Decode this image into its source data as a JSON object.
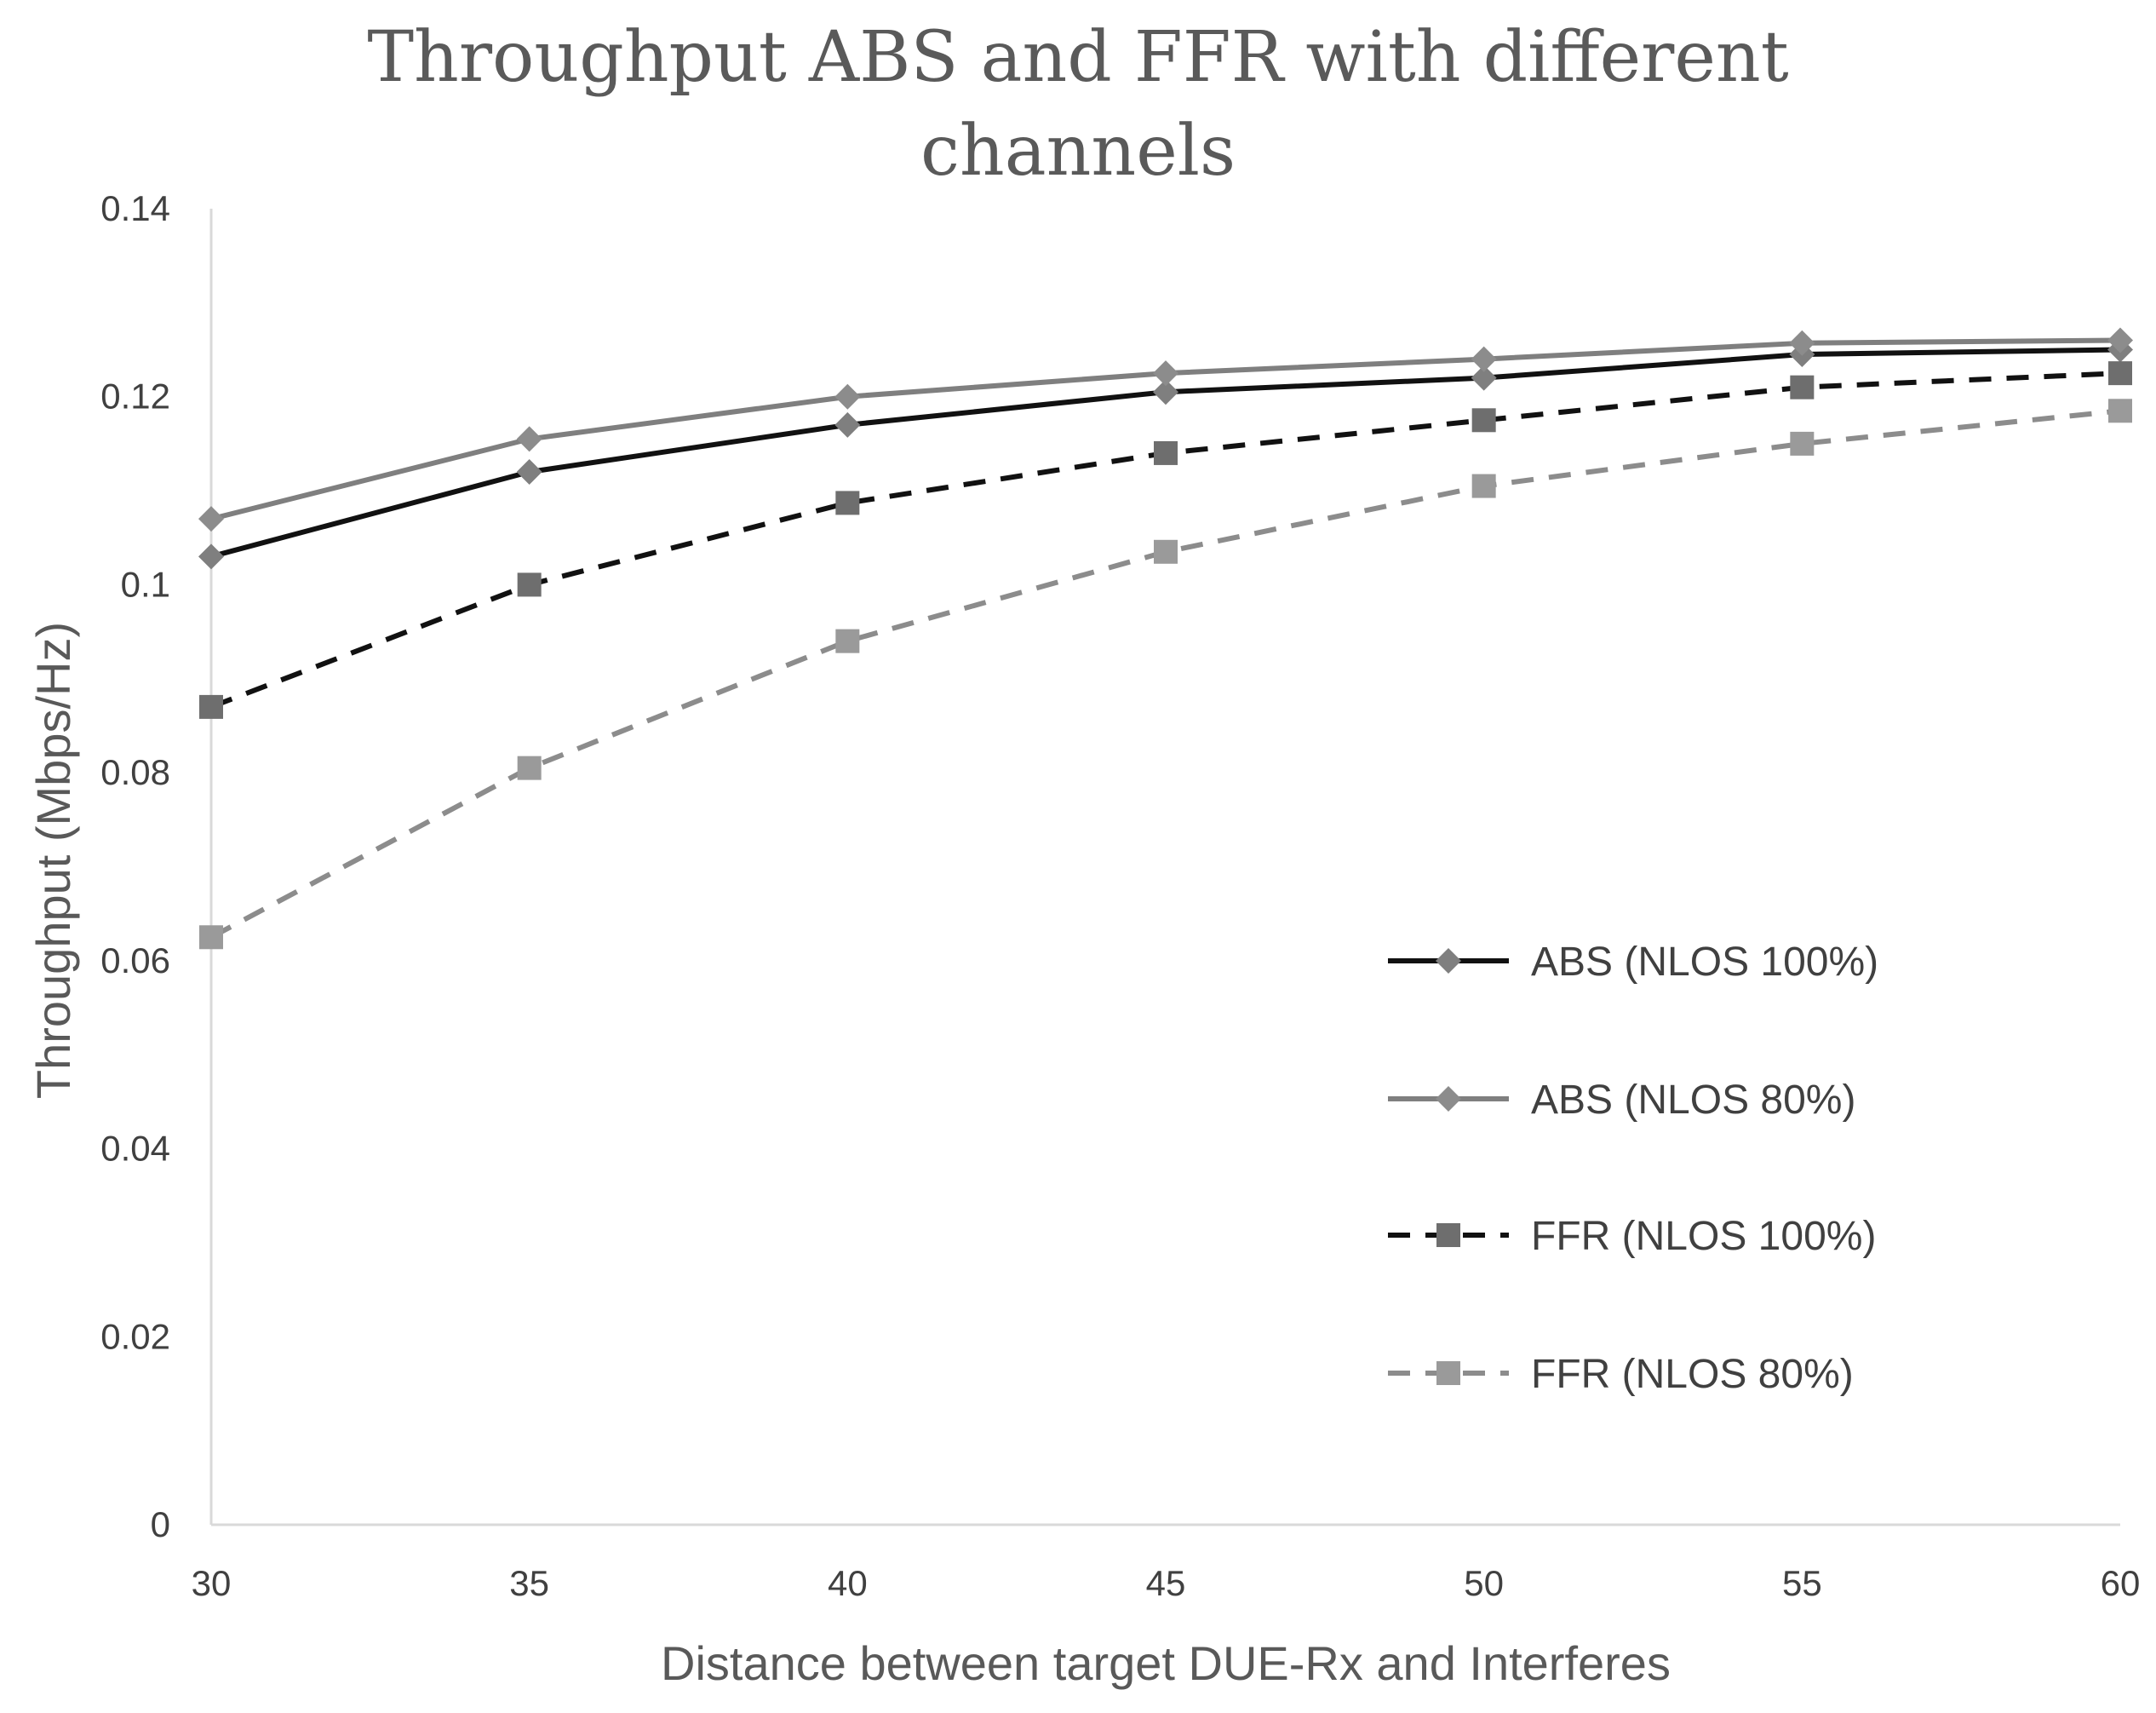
{
  "chart_data": {
    "type": "line",
    "title_line1": "Throughput ABS and FFR with different",
    "title_line2": "channels",
    "xlabel": "Distance between target DUE-Rx and Interferes",
    "ylabel": "Throughput (Mbps/Hz)",
    "x": [
      30,
      35,
      40,
      45,
      50,
      55,
      60
    ],
    "xlim": [
      30,
      60
    ],
    "ylim": [
      0,
      0.14
    ],
    "yticks": [
      0,
      0.02,
      0.04,
      0.06,
      0.08,
      0.1,
      0.12,
      0.14
    ],
    "ytick_labels": [
      "0",
      "0.02",
      "0.04",
      "0.06",
      "0.08",
      "0.1",
      "0.12",
      "0.14"
    ],
    "xtick_labels": [
      "30",
      "35",
      "40",
      "45",
      "50",
      "55",
      "60"
    ],
    "legend_position": "right",
    "series": [
      {
        "name": "ABS (NLOS 100%)",
        "values": [
          0.103,
          0.112,
          0.117,
          0.1205,
          0.122,
          0.1245,
          0.125
        ],
        "color": "#111111",
        "marker_color": "#7f7f7f",
        "dash": "solid",
        "marker": "diamond"
      },
      {
        "name": "ABS (NLOS 80%)",
        "values": [
          0.107,
          0.1155,
          0.12,
          0.1225,
          0.124,
          0.1257,
          0.126
        ],
        "color": "#7f7f7f",
        "marker_color": "#8c8c8c",
        "dash": "solid",
        "marker": "diamond"
      },
      {
        "name": "FFR (NLOS 100%)",
        "values": [
          0.087,
          0.1,
          0.1087,
          0.114,
          0.1175,
          0.121,
          0.1225
        ],
        "color": "#111111",
        "marker_color": "#6e6e6e",
        "dash": "dashed",
        "marker": "square"
      },
      {
        "name": "FFR (NLOS 80%)",
        "values": [
          0.0625,
          0.0805,
          0.094,
          0.1035,
          0.1105,
          0.115,
          0.1185
        ],
        "color": "#8c8c8c",
        "marker_color": "#9a9a9a",
        "dash": "dashed",
        "marker": "square"
      }
    ]
  }
}
